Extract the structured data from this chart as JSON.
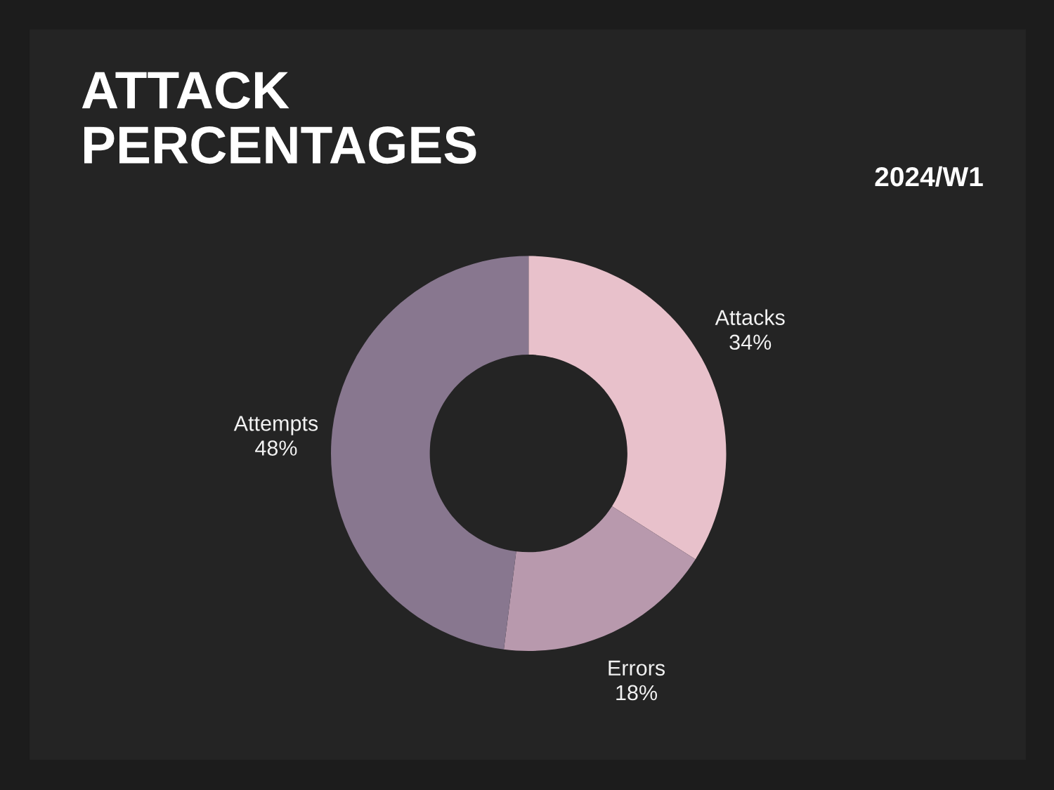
{
  "chart_data": {
    "type": "donut",
    "title": "ATTACK\nPERCENTAGES",
    "categories": [
      "Attacks",
      "Errors",
      "Attempts"
    ],
    "values": [
      34,
      18,
      48
    ],
    "value_labels": [
      "34%",
      "18%",
      "48%"
    ],
    "colors": [
      "#e8c1cb",
      "#b899ad",
      "#88778f"
    ],
    "annotations": [
      "2024/W1"
    ]
  }
}
